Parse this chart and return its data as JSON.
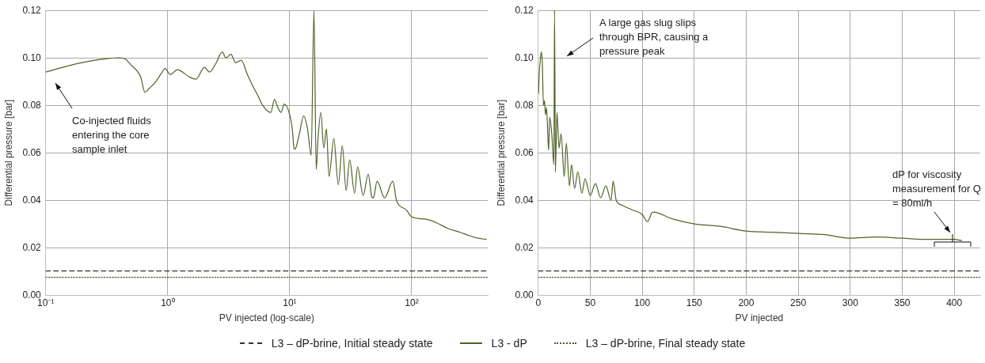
{
  "chart_data": [
    {
      "type": "line",
      "xlabel": "PV injected (log-scale)",
      "ylabel": "Differential pressure [bar]",
      "log": "x",
      "xlim": [
        0.1,
        420
      ],
      "xticks": [
        {
          "value": 0.1,
          "label": "10⁻¹"
        },
        {
          "value": 1,
          "label": "10⁰"
        },
        {
          "value": 10,
          "label": "10¹"
        },
        {
          "value": 100,
          "label": "10²"
        }
      ],
      "ylim": [
        0,
        0.12
      ],
      "yticks": [
        {
          "value": 0,
          "label": "0.00"
        },
        {
          "value": 0.02,
          "label": "0.02"
        },
        {
          "value": 0.04,
          "label": "0.04"
        },
        {
          "value": 0.06,
          "label": "0.06"
        },
        {
          "value": 0.08,
          "label": "0.08"
        },
        {
          "value": 0.1,
          "label": "0.10"
        },
        {
          "value": 0.12,
          "label": "0.12"
        }
      ],
      "grid": true,
      "legend": "bottom",
      "marker": "none",
      "annotations": [
        "Co-injected fluids entering the core sample inlet"
      ],
      "series": [
        {
          "name": "L3 – dP-brine, Initial steady state",
          "color": "#333333",
          "line_style": "dashed",
          "x": [
            0.1,
            420
          ],
          "values": [
            0.0102,
            0.0102
          ]
        },
        {
          "name": "L3 - dP",
          "color": "#4f6228",
          "line_style": "solid",
          "x": [
            0.1,
            0.15,
            0.2,
            0.3,
            0.4,
            0.45,
            0.5,
            0.6,
            0.65,
            0.7,
            0.8,
            0.9,
            0.95,
            1.05,
            1.2,
            1.5,
            1.7,
            2,
            2.2,
            2.5,
            2.8,
            3,
            3.3,
            3.6,
            4,
            4.5,
            5,
            5.5,
            6,
            7,
            7.5,
            8,
            8.5,
            9,
            10,
            10.5,
            10.8,
            11,
            11.3,
            12,
            13,
            14,
            15,
            15.8,
            16.5,
            17,
            18,
            19,
            20,
            21,
            23,
            25,
            27,
            29,
            31,
            34,
            36,
            40,
            44,
            47,
            48,
            49,
            52,
            60,
            70,
            75,
            90,
            100,
            130,
            160,
            200,
            250,
            300,
            350,
            410
          ],
          "values": [
            0.094,
            0.0965,
            0.098,
            0.0995,
            0.1,
            0.0995,
            0.097,
            0.092,
            0.0855,
            0.087,
            0.09,
            0.094,
            0.0955,
            0.093,
            0.095,
            0.092,
            0.091,
            0.096,
            0.094,
            0.098,
            0.1025,
            0.1,
            0.1015,
            0.098,
            0.099,
            0.093,
            0.088,
            0.084,
            0.08,
            0.077,
            0.0825,
            0.079,
            0.077,
            0.0805,
            0.076,
            0.07,
            0.0625,
            0.0615,
            0.0625,
            0.068,
            0.0755,
            0.07,
            0.059,
            0.12,
            0.053,
            0.065,
            0.077,
            0.062,
            0.07,
            0.05,
            0.066,
            0.0465,
            0.063,
            0.044,
            0.057,
            0.043,
            0.054,
            0.042,
            0.051,
            0.0415,
            0.041,
            0.0415,
            0.048,
            0.041,
            0.048,
            0.04,
            0.036,
            0.033,
            0.032,
            0.0305,
            0.028,
            0.0265,
            0.025,
            0.024,
            0.0235
          ]
        },
        {
          "name": "L3 – dP-brine, Final steady state",
          "color": "#4a5a3a",
          "line_style": "dotted",
          "x": [
            0.1,
            420
          ],
          "values": [
            0.0075,
            0.0075
          ]
        }
      ]
    },
    {
      "type": "line",
      "xlabel": "PV injected",
      "ylabel": "Differential pressure [bar]",
      "xlim": [
        0,
        425
      ],
      "xticks": [
        0,
        50,
        100,
        150,
        200,
        250,
        300,
        350,
        400
      ],
      "ylim": [
        0,
        0.12
      ],
      "yticks": [
        {
          "value": 0,
          "label": "0.00"
        },
        {
          "value": 0.02,
          "label": "0.02"
        },
        {
          "value": 0.04,
          "label": "0.04"
        },
        {
          "value": 0.06,
          "label": "0.06"
        },
        {
          "value": 0.08,
          "label": "0.08"
        },
        {
          "value": 0.1,
          "label": "0.10"
        },
        {
          "value": 0.12,
          "label": "0.12"
        }
      ],
      "grid": true,
      "marker": "none",
      "annotations": [
        "A large gas slug slips through BPR, causing a pressure peak",
        "dP for viscosity measurement for Q = 80ml/h"
      ],
      "series": [
        {
          "color": "#333333",
          "line_style": "dashed",
          "x": [
            0,
            425
          ],
          "values": [
            0.0102,
            0.0102
          ]
        },
        {
          "color": "#4f6228",
          "line_style": "solid",
          "x": [
            0.3,
            1,
            2,
            3,
            4,
            5,
            6,
            7,
            8,
            10,
            11,
            13,
            15,
            15.7,
            16.5,
            18,
            20,
            22,
            25,
            27,
            30,
            32,
            35,
            38,
            42,
            45,
            50,
            55,
            60,
            65,
            70,
            72,
            75,
            80,
            90,
            100,
            105,
            110,
            130,
            150,
            175,
            200,
            225,
            250,
            275,
            300,
            325,
            350,
            375,
            400,
            407
          ],
          "values": [
            0.085,
            0.094,
            0.099,
            0.1025,
            0.097,
            0.08,
            0.082,
            0.076,
            0.079,
            0.061,
            0.075,
            0.068,
            0.055,
            0.12,
            0.052,
            0.077,
            0.062,
            0.068,
            0.05,
            0.064,
            0.046,
            0.055,
            0.045,
            0.052,
            0.043,
            0.049,
            0.042,
            0.047,
            0.041,
            0.046,
            0.04,
            0.048,
            0.04,
            0.038,
            0.036,
            0.034,
            0.031,
            0.035,
            0.032,
            0.03,
            0.029,
            0.027,
            0.0265,
            0.026,
            0.0255,
            0.024,
            0.0245,
            0.024,
            0.0235,
            0.0235,
            0.023
          ]
        },
        {
          "color": "#4a5a3a",
          "line_style": "dotted",
          "x": [
            0,
            425
          ],
          "values": [
            0.0075,
            0.0075
          ]
        }
      ]
    }
  ]
}
